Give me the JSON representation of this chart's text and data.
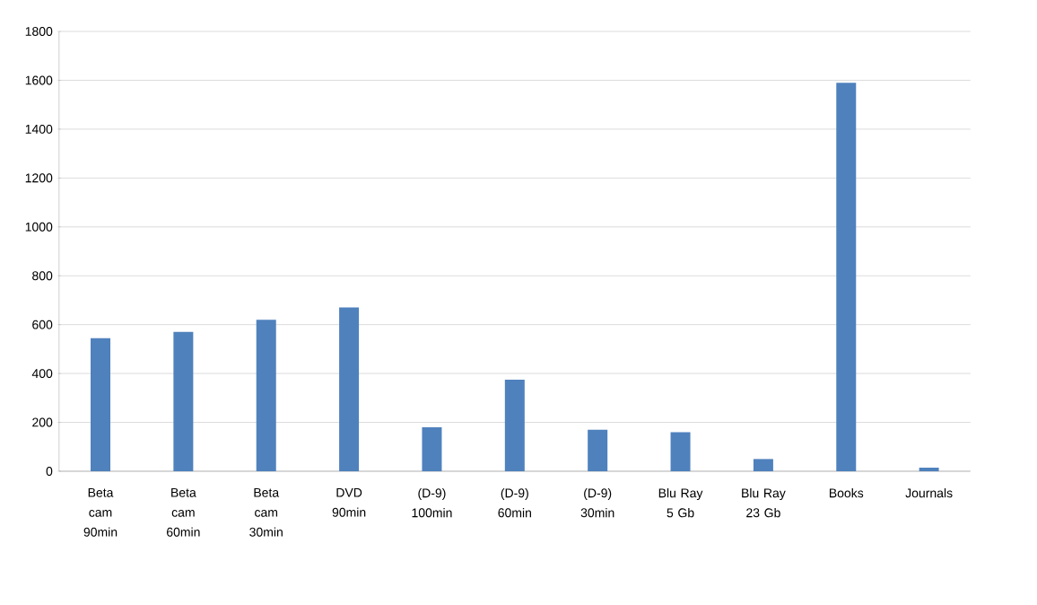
{
  "chart_data": {
    "type": "bar",
    "categories": [
      "Beta cam 90min",
      "Beta cam 60min",
      "Beta cam 30min",
      "DVD 90min",
      "(D-9) 100min",
      "(D-9) 60min",
      "(D-9) 30min",
      "Blu Ray 5 Gb",
      "Blu Ray 23 Gb",
      "Books",
      "Journals"
    ],
    "values": [
      545,
      570,
      620,
      670,
      180,
      375,
      170,
      160,
      50,
      1590,
      15
    ],
    "color": "#4f81bd",
    "ylim": [
      0,
      1800
    ],
    "yticks": [
      0,
      200,
      400,
      600,
      800,
      1000,
      1200,
      1400,
      1600,
      1800
    ],
    "grid": "y"
  }
}
